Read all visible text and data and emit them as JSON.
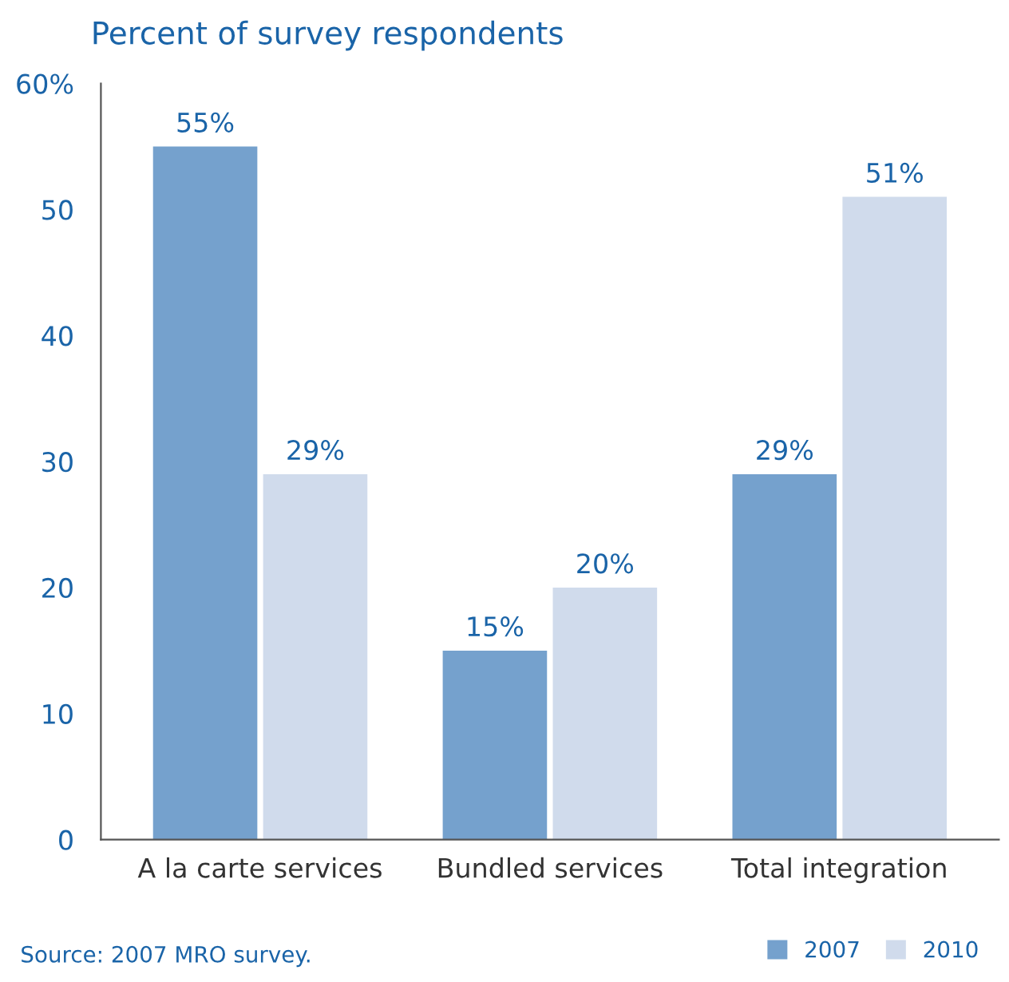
{
  "chart_data": {
    "type": "bar",
    "title": "Percent of survey respondents",
    "categories": [
      "A la carte services",
      "Bundled services",
      "Total integration"
    ],
    "series": [
      {
        "name": "2007",
        "color": "#75a1cd",
        "values": [
          55,
          15,
          29
        ],
        "value_labels": [
          "55%",
          "15%",
          "29%"
        ]
      },
      {
        "name": "2010",
        "color": "#d0dbec",
        "values": [
          29,
          20,
          51
        ],
        "value_labels": [
          "29%",
          "20%",
          "51%"
        ]
      }
    ],
    "ylim": [
      0,
      60
    ],
    "yticks": [
      0,
      10,
      20,
      30,
      40,
      50,
      {
        "value": 60,
        "label": "60%"
      }
    ],
    "grid": false,
    "legend": "bottom right",
    "annotations": [
      "Source: 2007 MRO survey."
    ]
  }
}
